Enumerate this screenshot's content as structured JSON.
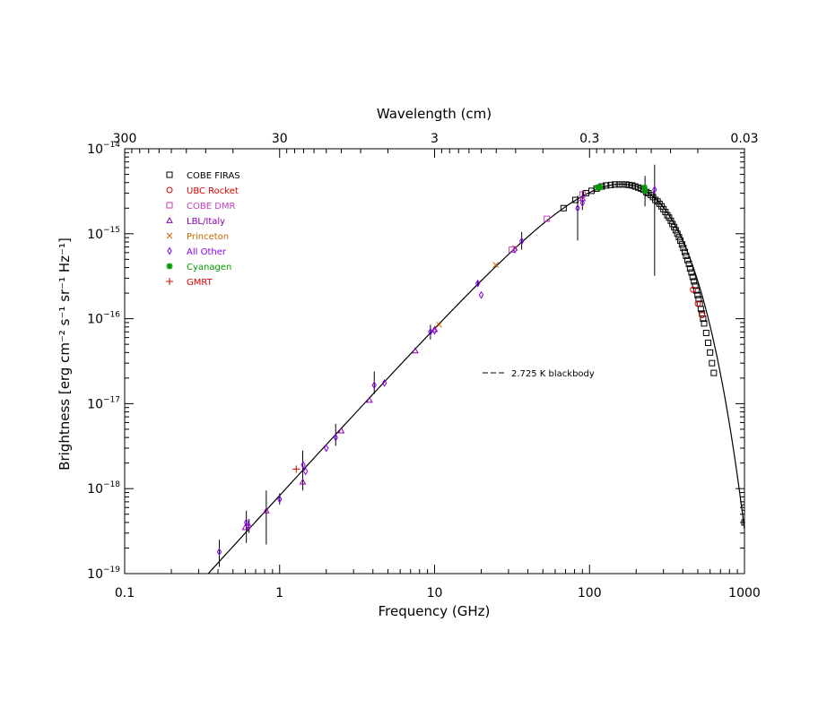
{
  "chart_data": {
    "type": "scatter",
    "xlabel": "Frequency (GHz)",
    "ylabel": "Brightness [erg cm⁻² s⁻¹ sr⁻¹ Hz⁻¹]",
    "top_axis_label": "Wavelength (cm)",
    "x_scale": "log",
    "y_scale": "log",
    "xlim": [
      0.1,
      1000
    ],
    "ylim": [
      1e-19,
      1e-14
    ],
    "x_ticks": [
      {
        "value": 0.1,
        "label": "0.1"
      },
      {
        "value": 1,
        "label": "1"
      },
      {
        "value": 10,
        "label": "10"
      },
      {
        "value": 100,
        "label": "100"
      },
      {
        "value": 1000,
        "label": "1000"
      }
    ],
    "top_ticks": [
      {
        "value_cm": 300,
        "label": "300"
      },
      {
        "value_cm": 30,
        "label": "30"
      },
      {
        "value_cm": 3,
        "label": "3"
      },
      {
        "value_cm": 0.3,
        "label": "0.3"
      },
      {
        "value_cm": 0.03,
        "label": "0.03"
      }
    ],
    "y_ticks": [
      {
        "value": 1e-14,
        "mant": "10",
        "exp": "−14"
      },
      {
        "value": 1e-15,
        "mant": "10",
        "exp": "−15"
      },
      {
        "value": 1e-16,
        "mant": "10",
        "exp": "−16"
      },
      {
        "value": 1e-17,
        "mant": "10",
        "exp": "−17"
      },
      {
        "value": 1e-18,
        "mant": "10",
        "exp": "−18"
      },
      {
        "value": 1e-19,
        "mant": "10",
        "exp": "−19"
      }
    ],
    "legend_position": "top-left",
    "model": {
      "label": "2.725 K blackbody",
      "temperature_K": 2.725,
      "style": "dashed-legend"
    },
    "series": [
      {
        "name": "COBE FIRAS",
        "marker": "square",
        "color": "#000000",
        "points": [
          {
            "x": 68,
            "y": 2e-15
          },
          {
            "x": 81,
            "y": 2.5e-15
          },
          {
            "x": 95,
            "y": 3e-15
          },
          {
            "x": 103,
            "y": 3.2e-15
          },
          {
            "x": 111,
            "y": 3.4e-15
          },
          {
            "x": 120,
            "y": 3.6e-15
          },
          {
            "x": 128,
            "y": 3.7e-15
          },
          {
            "x": 137,
            "y": 3.75e-15
          },
          {
            "x": 146,
            "y": 3.8e-15
          },
          {
            "x": 155,
            "y": 3.8e-15
          },
          {
            "x": 163,
            "y": 3.8e-15
          },
          {
            "x": 172,
            "y": 3.8e-15
          },
          {
            "x": 180,
            "y": 3.75e-15
          },
          {
            "x": 189,
            "y": 3.7e-15
          },
          {
            "x": 197,
            "y": 3.6e-15
          },
          {
            "x": 206,
            "y": 3.5e-15
          },
          {
            "x": 215,
            "y": 3.4e-15
          },
          {
            "x": 223,
            "y": 3.3e-15
          },
          {
            "x": 232,
            "y": 3.1e-15
          },
          {
            "x": 240,
            "y": 3e-15
          },
          {
            "x": 249,
            "y": 2.85e-15
          },
          {
            "x": 257,
            "y": 2.7e-15
          },
          {
            "x": 266,
            "y": 2.5e-15
          },
          {
            "x": 275,
            "y": 2.4e-15
          },
          {
            "x": 283,
            "y": 2.25e-15
          },
          {
            "x": 292,
            "y": 2.1e-15
          },
          {
            "x": 300,
            "y": 1.95e-15
          },
          {
            "x": 309,
            "y": 1.8e-15
          },
          {
            "x": 318,
            "y": 1.65e-15
          },
          {
            "x": 326,
            "y": 1.55e-15
          },
          {
            "x": 335,
            "y": 1.42e-15
          },
          {
            "x": 343,
            "y": 1.3e-15
          },
          {
            "x": 352,
            "y": 1.2e-15
          },
          {
            "x": 360,
            "y": 1.1e-15
          },
          {
            "x": 369,
            "y": 1e-15
          },
          {
            "x": 378,
            "y": 9.1e-16
          },
          {
            "x": 386,
            "y": 8.3e-16
          },
          {
            "x": 395,
            "y": 7.5e-16
          },
          {
            "x": 403,
            "y": 6.8e-16
          },
          {
            "x": 412,
            "y": 6.1e-16
          },
          {
            "x": 420,
            "y": 5.5e-16
          },
          {
            "x": 429,
            "y": 4.9e-16
          },
          {
            "x": 438,
            "y": 4.4e-16
          },
          {
            "x": 446,
            "y": 3.9e-16
          },
          {
            "x": 455,
            "y": 3.5e-16
          },
          {
            "x": 463,
            "y": 3.1e-16
          },
          {
            "x": 472,
            "y": 2.75e-16
          },
          {
            "x": 481,
            "y": 2.45e-16
          },
          {
            "x": 489,
            "y": 2.15e-16
          },
          {
            "x": 498,
            "y": 1.9e-16
          },
          {
            "x": 506,
            "y": 1.7e-16
          },
          {
            "x": 515,
            "y": 1.5e-16
          },
          {
            "x": 523,
            "y": 1.3e-16
          },
          {
            "x": 532,
            "y": 1.15e-16
          },
          {
            "x": 541,
            "y": 1e-16
          },
          {
            "x": 549,
            "y": 8.8e-17
          },
          {
            "x": 566,
            "y": 6.8e-17
          },
          {
            "x": 583,
            "y": 5.2e-17
          },
          {
            "x": 600,
            "y": 4e-17
          },
          {
            "x": 617,
            "y": 3e-17
          },
          {
            "x": 634,
            "y": 2.3e-17
          },
          {
            "x": 1000,
            "y": 6e-19
          },
          {
            "x": 1000,
            "y": 4e-19
          }
        ]
      },
      {
        "name": "UBC Rocket",
        "marker": "circle",
        "color": "#dd0000",
        "points": [
          {
            "x": 466,
            "y": 2.2e-16
          },
          {
            "x": 500,
            "y": 1.5e-16
          },
          {
            "x": 533,
            "y": 1.1e-16
          }
        ]
      },
      {
        "name": "COBE DMR",
        "marker": "square",
        "color": "#c040c0",
        "points": [
          {
            "x": 31.5,
            "y": 6.5e-16
          },
          {
            "x": 53,
            "y": 1.5e-15
          },
          {
            "x": 90,
            "y": 2.9e-15
          }
        ]
      },
      {
        "name": "LBL/Italy",
        "marker": "triangle",
        "color": "#8800aa",
        "points": [
          {
            "x": 0.6,
            "y": 3.5e-19
          },
          {
            "x": 0.82,
            "y": 5.5e-19
          },
          {
            "x": 1.41,
            "y": 1.2e-18
          },
          {
            "x": 2.5,
            "y": 4.8e-18
          },
          {
            "x": 3.8,
            "y": 1.1e-17
          },
          {
            "x": 7.5,
            "y": 4.2e-17
          },
          {
            "x": 10,
            "y": 7.5e-17
          },
          {
            "x": 90,
            "y": 2.6e-15
          }
        ]
      },
      {
        "name": "Princeton",
        "marker": "x",
        "color": "#cc6600",
        "points": [
          {
            "x": 10.7,
            "y": 8.5e-17
          },
          {
            "x": 24.8,
            "y": 4.3e-16
          },
          {
            "x": 33,
            "y": 6.8e-16
          }
        ]
      },
      {
        "name": "All Other",
        "marker": "diamond",
        "color": "#8800ee",
        "points": [
          {
            "x": 0.408,
            "y": 1.8e-19
          },
          {
            "x": 0.61,
            "y": 4e-19
          },
          {
            "x": 0.635,
            "y": 3.6e-19
          },
          {
            "x": 1.0,
            "y": 7.5e-19
          },
          {
            "x": 1.42,
            "y": 1.9e-18
          },
          {
            "x": 1.47,
            "y": 1.6e-18
          },
          {
            "x": 2.0,
            "y": 3e-18
          },
          {
            "x": 2.3,
            "y": 4e-18
          },
          {
            "x": 4.08,
            "y": 1.65e-17
          },
          {
            "x": 4.75,
            "y": 1.75e-17
          },
          {
            "x": 9.4,
            "y": 7e-17
          },
          {
            "x": 10.0,
            "y": 7.2e-17
          },
          {
            "x": 19.0,
            "y": 2.6e-16
          },
          {
            "x": 20.0,
            "y": 1.9e-16
          },
          {
            "x": 33,
            "y": 6.5e-16
          },
          {
            "x": 36.5,
            "y": 8.2e-16
          },
          {
            "x": 83.8,
            "y": 2e-15
          },
          {
            "x": 90,
            "y": 2.3e-15
          },
          {
            "x": 263,
            "y": 3.3e-15
          }
        ]
      },
      {
        "name": "Cyanagen",
        "marker": "asterisk",
        "color": "#009900",
        "points": [
          {
            "x": 113,
            "y": 3.5e-15
          },
          {
            "x": 115,
            "y": 3.55e-15
          },
          {
            "x": 117,
            "y": 3.5e-15
          },
          {
            "x": 226,
            "y": 3.5e-15
          },
          {
            "x": 228,
            "y": 3.2e-15
          }
        ]
      },
      {
        "name": "GMRT",
        "marker": "plus",
        "color": "#dd0000",
        "points": [
          {
            "x": 1.28,
            "y": 1.7e-18
          }
        ]
      }
    ],
    "error_bars": [
      {
        "x": 0.408,
        "ylo": 1.2e-19,
        "yhi": 2.5e-19
      },
      {
        "x": 0.61,
        "ylo": 2.3e-19,
        "yhi": 5.5e-19
      },
      {
        "x": 0.635,
        "ylo": 3e-19,
        "yhi": 4.4e-19
      },
      {
        "x": 0.82,
        "ylo": 2.2e-19,
        "yhi": 9.5e-19
      },
      {
        "x": 1.0,
        "ylo": 6.5e-19,
        "yhi": 8.8e-19
      },
      {
        "x": 1.41,
        "ylo": 9.5e-19,
        "yhi": 2.8e-18
      },
      {
        "x": 2.3,
        "ylo": 3.2e-18,
        "yhi": 5.8e-18
      },
      {
        "x": 4.08,
        "ylo": 1.3e-17,
        "yhi": 2.4e-17
      },
      {
        "x": 9.4,
        "ylo": 5.7e-17,
        "yhi": 8.5e-17
      },
      {
        "x": 19.0,
        "ylo": 2.4e-16,
        "yhi": 2.8e-16
      },
      {
        "x": 36.5,
        "ylo": 6.5e-16,
        "yhi": 1.05e-15
      },
      {
        "x": 83.8,
        "ylo": 8.3e-16,
        "yhi": 2.8e-15
      },
      {
        "x": 90,
        "ylo": 1.9e-15,
        "yhi": 3.2e-15
      },
      {
        "x": 228,
        "ylo": 2.1e-15,
        "yhi": 4.8e-15
      },
      {
        "x": 263,
        "ylo": 3.2e-16,
        "yhi": 6.5e-15
      }
    ]
  }
}
